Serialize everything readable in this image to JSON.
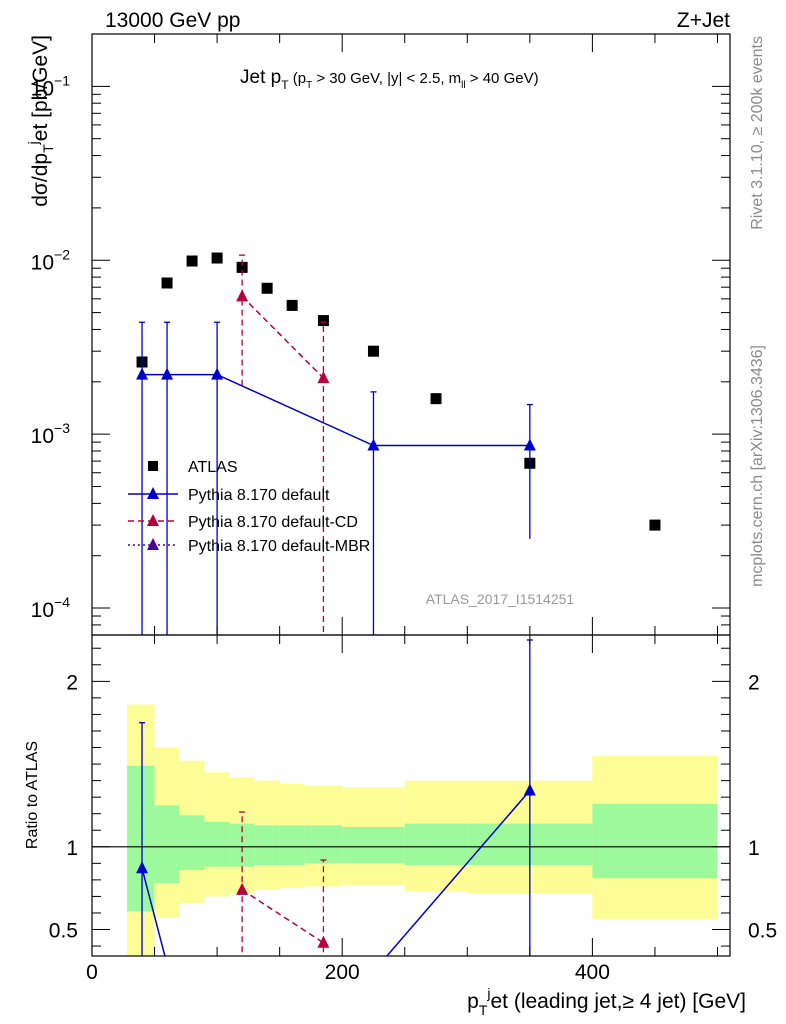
{
  "header": {
    "left": "13000 GeV pp",
    "right": "Z+Jet"
  },
  "side_labels": {
    "rivet": "Rivet 3.1.10, ≥ 200k events",
    "mcplots": "mcplots.cern.ch [arXiv:1306.3436]"
  },
  "watermark": "ATLAS_2017_I1514251",
  "chart_data": [
    {
      "type": "scatter",
      "panel": "main",
      "title": {
        "main": "Jet p",
        "main_sub": "T",
        "cut_open": " (p",
        "cut_sub1": "T",
        "cut_mid": " > 30 GeV, |y| < 2.5, m",
        "cut_sub2": "ll",
        "cut_close": " > 40 GeV)"
      },
      "ylabel": {
        "a": "dσ/dp",
        "a_sub": "T",
        "a_sup": "j",
        "b": "et [pb/GeV]"
      },
      "yscale": "log",
      "ylim": [
        7e-05,
        0.2
      ],
      "xlim": [
        0,
        510
      ],
      "y_ticks": [
        {
          "value": 0.1,
          "base": "10",
          "exp": "−1"
        },
        {
          "value": 0.01,
          "base": "10",
          "exp": "−2"
        },
        {
          "value": 0.001,
          "base": "10",
          "exp": "−3"
        },
        {
          "value": 0.0001,
          "base": "10",
          "exp": "−4"
        }
      ],
      "legend_position": "lower-left",
      "series": [
        {
          "name": "ATLAS",
          "color": "#000000",
          "marker": "square",
          "points": [
            {
              "x": 40,
              "y": 0.0026
            },
            {
              "x": 60,
              "y": 0.0074
            },
            {
              "x": 80,
              "y": 0.0099
            },
            {
              "x": 100,
              "y": 0.0103
            },
            {
              "x": 120,
              "y": 0.0091
            },
            {
              "x": 140,
              "y": 0.0069
            },
            {
              "x": 160,
              "y": 0.0055
            },
            {
              "x": 185,
              "y": 0.0045
            },
            {
              "x": 225,
              "y": 0.003
            },
            {
              "x": 275,
              "y": 0.0016
            },
            {
              "x": 350,
              "y": 0.00068
            },
            {
              "x": 450,
              "y": 0.0003
            }
          ]
        },
        {
          "name": "Pythia 8.170 default",
          "color": "#0000cc",
          "marker": "triangle",
          "line": "solid",
          "points": [
            {
              "x": 40,
              "y": 0.0022,
              "ylo": 1e-05,
              "yhi": 0.0044
            },
            {
              "x": 60,
              "y": 0.0022,
              "ylo": 1e-05,
              "yhi": 0.0044
            },
            {
              "x": 100,
              "y": 0.0022,
              "ylo": 1e-05,
              "yhi": 0.0044
            },
            {
              "x": 225,
              "y": 0.00086,
              "ylo": 1e-05,
              "yhi": 0.00175
            },
            {
              "x": 350,
              "y": 0.00086,
              "ylo": 0.00025,
              "yhi": 0.00148
            }
          ]
        },
        {
          "name": "Pythia 8.170 default-CD",
          "color": "#b5003a",
          "marker": "triangle",
          "line": "dashed",
          "points": [
            {
              "x": 120,
              "y": 0.0062,
              "ylo": 0.0019,
              "yhi": 0.0107
            },
            {
              "x": 185,
              "y": 0.0021,
              "ylo": 1e-05,
              "yhi": 0.0044
            }
          ]
        },
        {
          "name": "Pythia 8.170 default-MBR",
          "color": "#4b0096",
          "marker": "triangle",
          "line": "dotted",
          "points": []
        }
      ]
    },
    {
      "type": "scatter",
      "panel": "ratio",
      "ylabel": "Ratio to ATLAS",
      "xlabel": {
        "a": "p",
        "a_sub": "T",
        "a_sup": "j",
        "b": "et (leading jet,≥ 4 jet) [GeV]"
      },
      "xlim": [
        0,
        510
      ],
      "ylim": [
        0.34,
        2.28
      ],
      "x_ticks": [
        0,
        200,
        400
      ],
      "y_ticks": [
        {
          "value": 0.5,
          "label": "0.5"
        },
        {
          "value": 1,
          "label": "1"
        },
        {
          "value": 2,
          "label": "2"
        }
      ],
      "bands": [
        {
          "xlo": 28,
          "xhi": 50,
          "inner": [
            0.61,
            1.49
          ],
          "outer": [
            0.34,
            1.86
          ]
        },
        {
          "xlo": 50,
          "xhi": 70,
          "inner": [
            0.78,
            1.25
          ],
          "outer": [
            0.57,
            1.6
          ]
        },
        {
          "xlo": 70,
          "xhi": 90,
          "inner": [
            0.86,
            1.19
          ],
          "outer": [
            0.66,
            1.52
          ]
        },
        {
          "xlo": 90,
          "xhi": 110,
          "inner": [
            0.88,
            1.15
          ],
          "outer": [
            0.7,
            1.45
          ]
        },
        {
          "xlo": 110,
          "xhi": 130,
          "inner": [
            0.88,
            1.14
          ],
          "outer": [
            0.72,
            1.42
          ]
        },
        {
          "xlo": 130,
          "xhi": 150,
          "inner": [
            0.89,
            1.13
          ],
          "outer": [
            0.74,
            1.4
          ]
        },
        {
          "xlo": 150,
          "xhi": 170,
          "inner": [
            0.89,
            1.13
          ],
          "outer": [
            0.75,
            1.38
          ]
        },
        {
          "xlo": 170,
          "xhi": 200,
          "inner": [
            0.9,
            1.13
          ],
          "outer": [
            0.76,
            1.37
          ]
        },
        {
          "xlo": 200,
          "xhi": 250,
          "inner": [
            0.9,
            1.12
          ],
          "outer": [
            0.77,
            1.36
          ]
        },
        {
          "xlo": 250,
          "xhi": 300,
          "inner": [
            0.89,
            1.14
          ],
          "outer": [
            0.73,
            1.4
          ]
        },
        {
          "xlo": 300,
          "xhi": 400,
          "inner": [
            0.89,
            1.14
          ],
          "outer": [
            0.72,
            1.4
          ]
        },
        {
          "xlo": 400,
          "xhi": 500,
          "inner": [
            0.81,
            1.26
          ],
          "outer": [
            0.56,
            1.55
          ]
        }
      ],
      "series": [
        {
          "name": "Pythia 8.170 default",
          "color": "#0000cc",
          "line": "solid",
          "points": [
            {
              "x": 40,
              "y": 0.87,
              "ylo": 0.0,
              "yhi": 1.75
            },
            {
              "x": 60,
              "y": 0.29
            },
            {
              "x": 230,
              "y": 0.29
            },
            {
              "x": 350,
              "y": 1.34,
              "ylo": 0.0,
              "yhi": 2.25
            }
          ]
        },
        {
          "name": "Pythia 8.170 default-CD",
          "color": "#b5003a",
          "line": "dashed",
          "points": [
            {
              "x": 120,
              "y": 0.74,
              "ylo": 0.0,
              "yhi": 1.21
            },
            {
              "x": 185,
              "y": 0.42,
              "ylo": 0.0,
              "yhi": 0.92
            }
          ]
        }
      ]
    }
  ],
  "colors": {
    "band_inner": "#9cfa9c",
    "band_outer": "#fdfd96"
  }
}
